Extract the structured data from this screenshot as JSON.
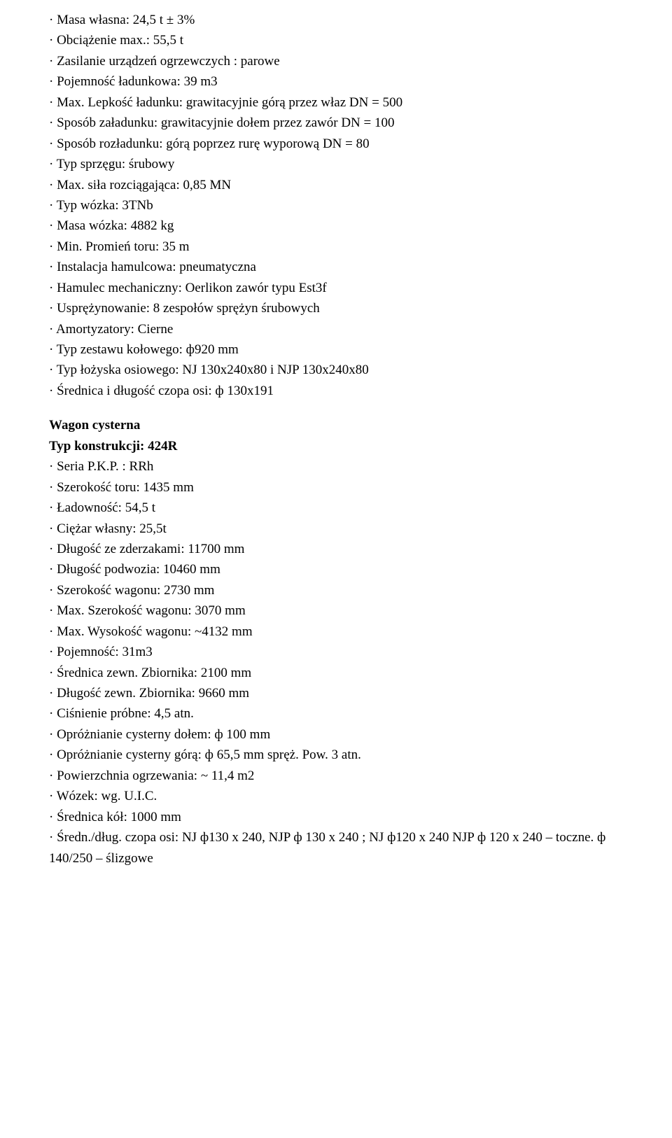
{
  "section1": {
    "lines": [
      "· Masa własna: 24,5 t ± 3%",
      "· Obciążenie max.: 55,5 t",
      "· Zasilanie urządzeń ogrzewczych : parowe",
      "· Pojemność ładunkowa: 39 m3",
      "· Max. Lepkość ładunku: grawitacyjnie górą przez właz DN = 500",
      "· Sposób załadunku: grawitacyjnie dołem przez zawór DN = 100",
      "· Sposób rozładunku: górą poprzez rurę wyporową DN = 80",
      "· Typ sprzęgu: śrubowy",
      "· Max. siła rozciągająca: 0,85 MN",
      "· Typ wózka: 3TNb",
      "· Masa wózka: 4882 kg",
      "· Min. Promień toru: 35 m",
      "· Instalacja hamulcowa: pneumatyczna",
      "· Hamulec mechaniczny: Oerlikon zawór typu Est3f",
      "· Usprężynowanie: 8 zespołów sprężyn śrubowych",
      "· Amortyzatory: Cierne",
      "· Typ zestawu kołowego: ф920 mm",
      "· Typ łożyska osiowego: NJ 130x240x80 i NJP 130x240x80",
      "· Średnica i długość czopa osi: ф 130x191"
    ]
  },
  "section2": {
    "heading1": "Wagon cysterna",
    "heading2": "Typ konstrukcji: 424R",
    "lines": [
      "· Seria P.K.P. : RRh",
      "· Szerokość toru: 1435 mm",
      "· Ładowność: 54,5 t",
      "· Ciężar własny: 25,5t",
      "· Długość ze zderzakami: 11700 mm",
      "· Długość podwozia: 10460 mm",
      "· Szerokość wagonu: 2730 mm",
      "· Max. Szerokość wagonu: 3070 mm",
      "· Max. Wysokość wagonu: ~4132 mm",
      "· Pojemność: 31m3",
      "· Średnica zewn. Zbiornika: 2100 mm",
      "· Długość zewn. Zbiornika: 9660 mm",
      "· Ciśnienie próbne: 4,5 atn.",
      "· Opróżnianie cysterny dołem: ф 100 mm",
      "· Opróżnianie cysterny górą: ф 65,5 mm spręż. Pow. 3 atn.",
      "· Powierzchnia ogrzewania: ~ 11,4 m2",
      "· Wózek: wg. U.I.C.",
      "· Średnica kół: 1000 mm",
      "· Średn./dług. czopa osi: NJ ф130 x 240, NJP ф 130 x 240 ; NJ ф120 x 240 NJP ф 120 x 240 – toczne. ф 140/250 – ślizgowe"
    ]
  }
}
